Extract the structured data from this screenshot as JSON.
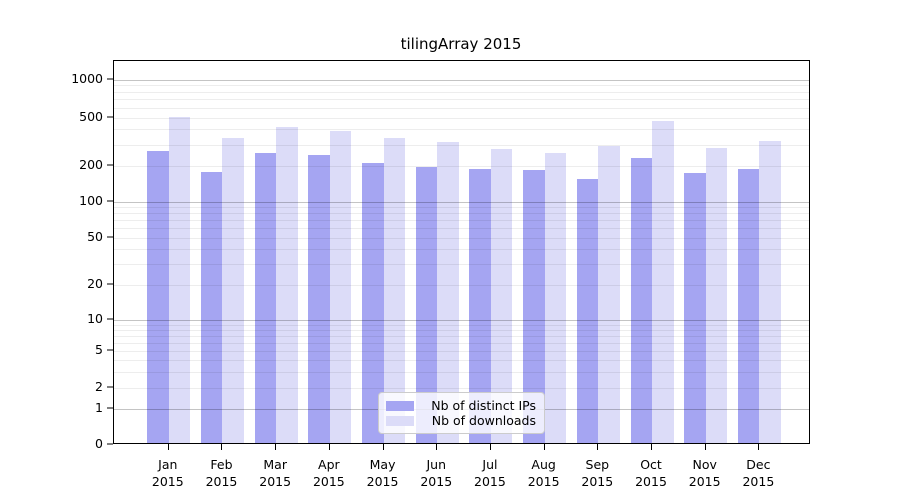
{
  "chart_data": {
    "type": "bar",
    "title": "tilingArray 2015",
    "scale": "symlog",
    "grid": true,
    "categories": [
      "Jan",
      "Feb",
      "Mar",
      "Apr",
      "May",
      "Jun",
      "Jul",
      "Aug",
      "Sep",
      "Oct",
      "Nov",
      "Dec"
    ],
    "x_year": "2015",
    "series": [
      {
        "name": "Nb of distinct IPs",
        "color": "#a5a5f2",
        "values": [
          255,
          170,
          245,
          235,
          205,
          190,
          182,
          178,
          150,
          224,
          167,
          180
        ]
      },
      {
        "name": "Nb of downloads",
        "color": "#dcdcf8",
        "values": [
          485,
          330,
          400,
          375,
          325,
          305,
          265,
          248,
          282,
          455,
          272,
          310
        ]
      }
    ],
    "yticks": [
      0,
      1,
      2,
      5,
      10,
      20,
      50,
      100,
      200,
      500,
      1000
    ],
    "ylim": [
      0,
      1000
    ],
    "legend_position": "lower center"
  }
}
